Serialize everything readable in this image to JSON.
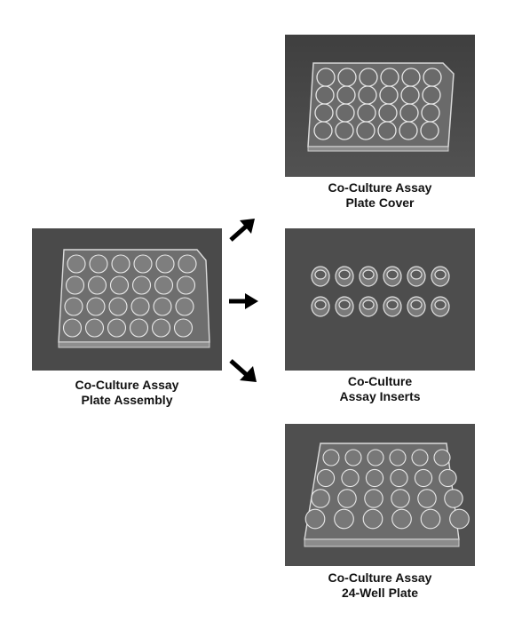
{
  "panels": {
    "assembly": {
      "label_line1": "Co-Culture Assay",
      "label_line2": "Plate Assembly",
      "image": "plate-assembly-photo"
    },
    "cover": {
      "label_line1": "Co-Culture Assay",
      "label_line2": "Plate Cover",
      "image": "plate-cover-photo"
    },
    "inserts": {
      "label_line1": "Co-Culture",
      "label_line2": "Assay Inserts",
      "image": "assay-inserts-photo"
    },
    "plate": {
      "label_line1": "Co-Culture Assay",
      "label_line2": "24-Well Plate",
      "image": "24-well-plate-photo"
    }
  },
  "arrows": [
    "arrow-up-right",
    "arrow-right",
    "arrow-down-right"
  ],
  "colors": {
    "photo_background": "#4a4a4a",
    "plastic": "#d8d8d8",
    "arrow": "#000000",
    "text": "#111111"
  }
}
